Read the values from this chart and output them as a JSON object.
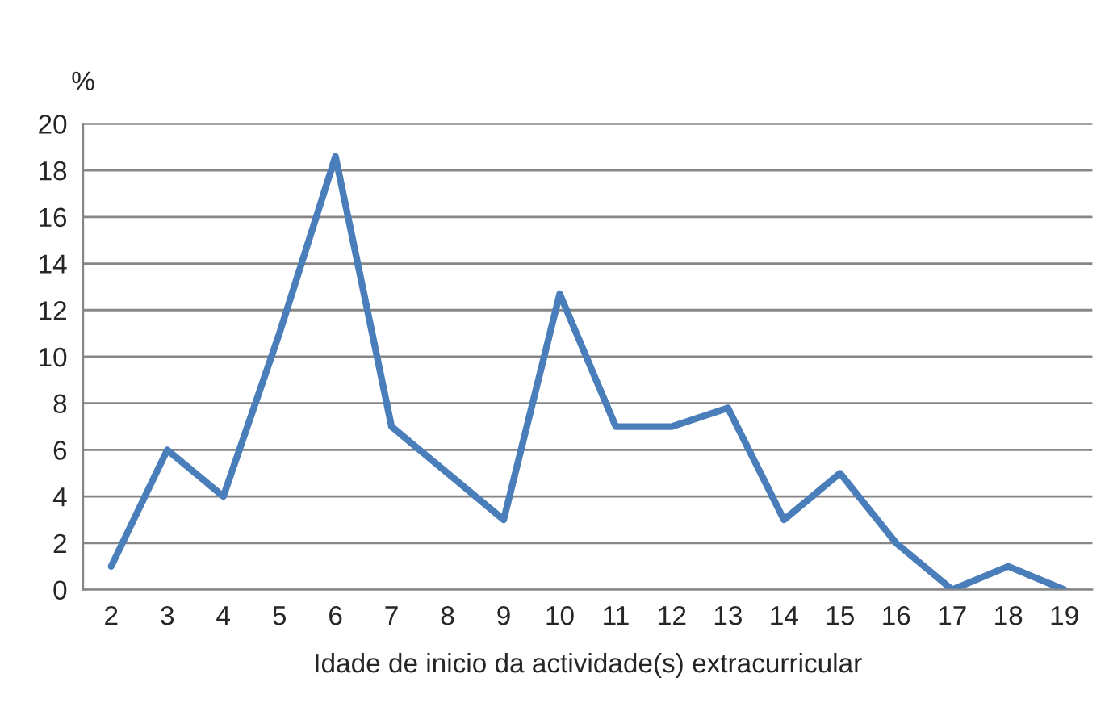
{
  "chart_data": {
    "type": "line",
    "ylabel": "%",
    "xlabel": "Idade de inicio da actividade(s) extracurricular",
    "categories": [
      "2",
      "3",
      "4",
      "5",
      "6",
      "7",
      "8",
      "9",
      "10",
      "11",
      "12",
      "13",
      "14",
      "15",
      "16",
      "17",
      "18",
      "19"
    ],
    "series": [
      {
        "color": "#4a7ebb",
        "values": [
          1,
          6,
          4,
          11,
          18.6,
          7,
          5,
          3,
          12.7,
          7,
          7,
          7.8,
          3,
          5,
          2,
          0,
          1,
          0
        ]
      }
    ],
    "ylim": [
      0,
      20
    ],
    "yticks": [
      0,
      2,
      4,
      6,
      8,
      10,
      12,
      14,
      16,
      18,
      20
    ],
    "grid": "y",
    "legend": false,
    "marker": "none",
    "line_style": "solid"
  }
}
